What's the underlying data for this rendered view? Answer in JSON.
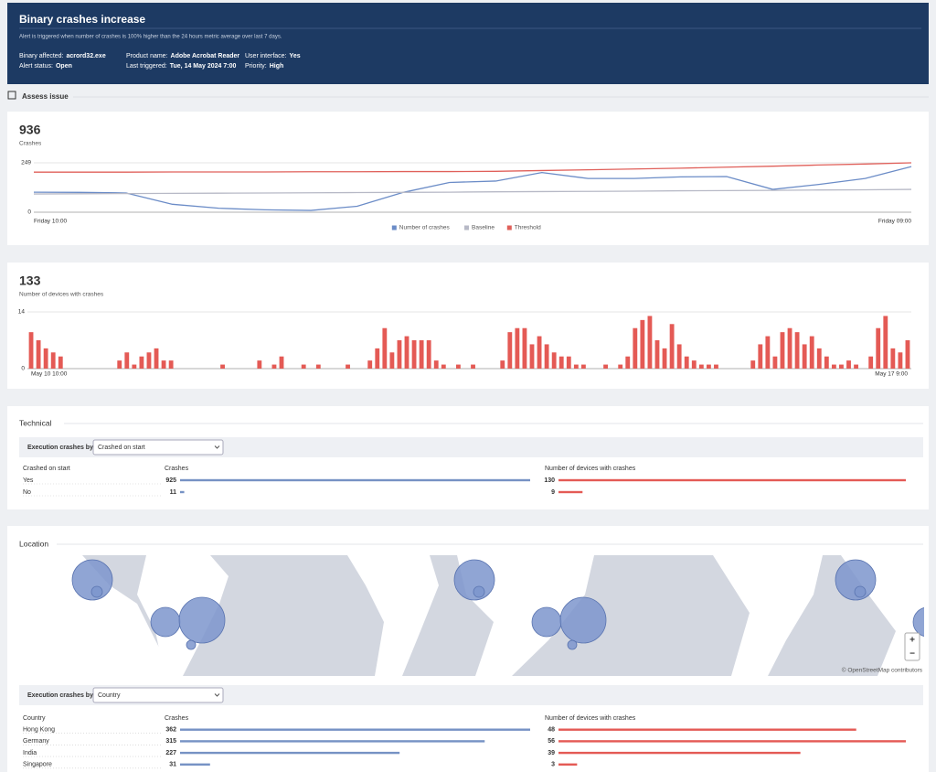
{
  "header": {
    "title": "Binary crashes increase",
    "subtitle": "Alert is triggered when number of crashes is 100% higher than the 24 hours metric average over last 7 days.",
    "fields": [
      {
        "label": "Binary affected:",
        "value": "acrord32.exe"
      },
      {
        "label": "Alert status:",
        "value": "Open"
      },
      {
        "label": "Product name:",
        "value": "Adobe Acrobat Reader"
      },
      {
        "label": "Last triggered:",
        "value": "Tue, 14 May 2024 7:00"
      },
      {
        "label": "User interface:",
        "value": "Yes"
      },
      {
        "label": "Priority:",
        "value": "High"
      }
    ]
  },
  "section_title": "Assess issue",
  "chart_data": [
    {
      "type": "line",
      "summary_value": 936,
      "summary_label": "Crashes",
      "categories": [
        "Friday 10:00",
        null,
        null,
        null,
        null,
        null,
        null,
        null,
        null,
        null,
        null,
        null,
        null,
        null,
        null,
        null,
        null,
        null,
        null,
        "Friday 09:00"
      ],
      "series": [
        {
          "name": "Number of crashes",
          "color": "#6b8cc7",
          "values": [
            101,
            100,
            97,
            40,
            20,
            12,
            9,
            30,
            100,
            150,
            157,
            200,
            170,
            170,
            178,
            180,
            115,
            140,
            170,
            230
          ]
        },
        {
          "name": "Baseline",
          "color": "#b7b9c6",
          "values": [
            92,
            93,
            94,
            95,
            96,
            97,
            98,
            99,
            100,
            101,
            103,
            104,
            105,
            106,
            108,
            109,
            110,
            112,
            113,
            115
          ]
        },
        {
          "name": "Threshold",
          "color": "#e0605a",
          "values": [
            202,
            202,
            202,
            203,
            203,
            203,
            204,
            204,
            205,
            205,
            206,
            210,
            214,
            218,
            222,
            227,
            232,
            238,
            243,
            249
          ]
        }
      ],
      "ylim": [
        0,
        249
      ],
      "yticks": [
        0,
        249
      ],
      "grid": true
    },
    {
      "type": "bar",
      "summary_value": 133,
      "summary_label": "Number of devices with crashes",
      "color": "#e45a55",
      "categories": [
        "May 10 10:00",
        null,
        null,
        null,
        null,
        null,
        null,
        null,
        null,
        null,
        null,
        null,
        null,
        null,
        null,
        null,
        null,
        null,
        null,
        null,
        null,
        null,
        null,
        null,
        null,
        null,
        null,
        null,
        null,
        null,
        null,
        null,
        null,
        null,
        null,
        null,
        null,
        null,
        null,
        null,
        null,
        null,
        null,
        null,
        null,
        null,
        null,
        null,
        null,
        null,
        null,
        null,
        null,
        null,
        null,
        null,
        null,
        null,
        null,
        null,
        null,
        null,
        null,
        null,
        null,
        null,
        null,
        null,
        null,
        null,
        null,
        null,
        null,
        null,
        null,
        null,
        null,
        null,
        null,
        null,
        null,
        null,
        null,
        null,
        null,
        null,
        null,
        null,
        null,
        null,
        null,
        null,
        null,
        null,
        null,
        null,
        null,
        null,
        null,
        null,
        null,
        null,
        null,
        null,
        null,
        null,
        null,
        null,
        null,
        null,
        null,
        null,
        null,
        null,
        null,
        null,
        null,
        null,
        null,
        "May 17 9:00"
      ],
      "values": [
        9,
        7,
        5,
        4,
        3,
        0,
        0,
        0,
        0,
        0,
        0,
        0,
        2,
        4,
        1,
        3,
        4,
        5,
        2,
        2,
        0,
        0,
        0,
        0,
        0,
        0,
        1,
        0,
        0,
        0,
        0,
        2,
        0,
        1,
        3,
        0,
        0,
        1,
        0,
        1,
        0,
        0,
        0,
        1,
        0,
        0,
        2,
        5,
        10,
        4,
        7,
        8,
        7,
        7,
        7,
        2,
        1,
        0,
        1,
        0,
        1,
        0,
        0,
        0,
        2,
        9,
        10,
        10,
        6,
        8,
        6,
        4,
        3,
        3,
        1,
        1,
        0,
        0,
        1,
        0,
        1,
        3,
        10,
        12,
        13,
        7,
        5,
        11,
        6,
        3,
        2,
        1,
        1,
        1,
        0,
        0,
        0,
        0,
        2,
        6,
        8,
        3,
        9,
        10,
        9,
        6,
        8,
        5,
        3,
        1,
        1,
        2,
        1,
        0,
        3,
        10,
        13,
        5,
        4,
        7
      ],
      "ylim": [
        0,
        14
      ],
      "yticks": [
        0,
        14
      ],
      "grid": true
    }
  ],
  "technical": {
    "title": "Technical",
    "filter_label": "Execution crashes by",
    "filter_value": "Crashed on start",
    "columns": [
      "Crashed on start",
      "Crashes",
      "Number of devices with crashes"
    ],
    "rows": [
      [
        "Yes",
        925,
        130
      ],
      [
        "No",
        11,
        9
      ]
    ]
  },
  "location": {
    "title": "Location",
    "map_attribution": "© OpenStreetMap contributors",
    "zoom_in": "+",
    "zoom_out": "−",
    "filter_label": "Execution crashes by",
    "filter_value": "Country",
    "columns": [
      "Country",
      "Crashes",
      "Number of devices with crashes"
    ],
    "rows": [
      [
        "Hong Kong",
        362,
        48
      ],
      [
        "Germany",
        315,
        56
      ],
      [
        "India",
        227,
        39
      ],
      [
        "Singapore",
        31,
        3
      ]
    ]
  }
}
